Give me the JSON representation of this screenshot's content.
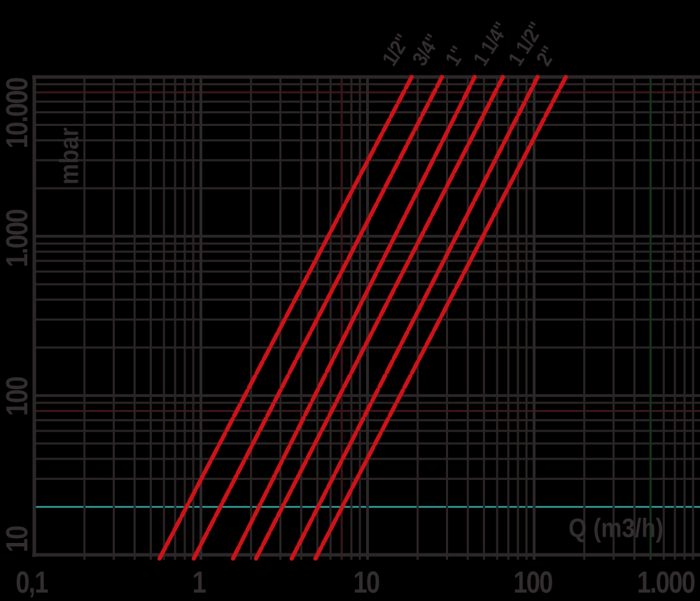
{
  "chart_data": {
    "type": "line",
    "title": "",
    "xlabel": "Q (m3/h)",
    "ylabel": "mbar",
    "x_axis": {
      "scale": "log",
      "min": 0.1,
      "max": 1000,
      "tick_values": [
        0.1,
        1,
        10,
        100,
        1000
      ],
      "tick_labels": [
        "0,1",
        "1",
        "10",
        "100",
        "1.000"
      ]
    },
    "y_axis": {
      "scale": "log",
      "min": 10,
      "max": 10000,
      "tick_values": [
        10,
        100,
        1000,
        10000
      ],
      "tick_labels": [
        "10",
        "100",
        "1.000",
        "10.000"
      ]
    },
    "grid": "on, log-log minor gridlines every decade multiple",
    "legend_position": "series labels rotated above top end of each line",
    "series": [
      {
        "name": "1/2\"",
        "x": [
          0.58,
          18.4
        ],
        "y": [
          10,
          10000
        ]
      },
      {
        "name": "3/4\"",
        "x": [
          0.93,
          28.0
        ],
        "y": [
          10,
          10000
        ]
      },
      {
        "name": "1\"",
        "x": [
          1.6,
          44.0
        ],
        "y": [
          10,
          10000
        ]
      },
      {
        "name": "1 1/4\"",
        "x": [
          2.2,
          65.0
        ],
        "y": [
          10,
          10000
        ]
      },
      {
        "name": "1 1/2\"",
        "x": [
          3.6,
          105.0
        ],
        "y": [
          10,
          10000
        ]
      },
      {
        "name": "2\"",
        "x": [
          5.0,
          155.0
        ],
        "y": [
          10,
          10000
        ]
      }
    ],
    "reference_line": {
      "axis": "y",
      "value": 20,
      "color": "#2f9e99"
    },
    "accent_gridlines": [
      {
        "axis": "y",
        "value": 80,
        "color": "#3b151a"
      },
      {
        "axis": "y",
        "value": 8000,
        "color": "#3b151a"
      },
      {
        "axis": "x",
        "value": 7,
        "color": "#3b151a"
      },
      {
        "axis": "x",
        "value": 500,
        "color": "#15341d"
      }
    ],
    "colors": {
      "background": "#000000",
      "grid": "#2a2425",
      "grid_major": "#2c2728",
      "text": "#322d2f",
      "series_line": "#cc1319",
      "reference": "#2f9e99"
    }
  }
}
